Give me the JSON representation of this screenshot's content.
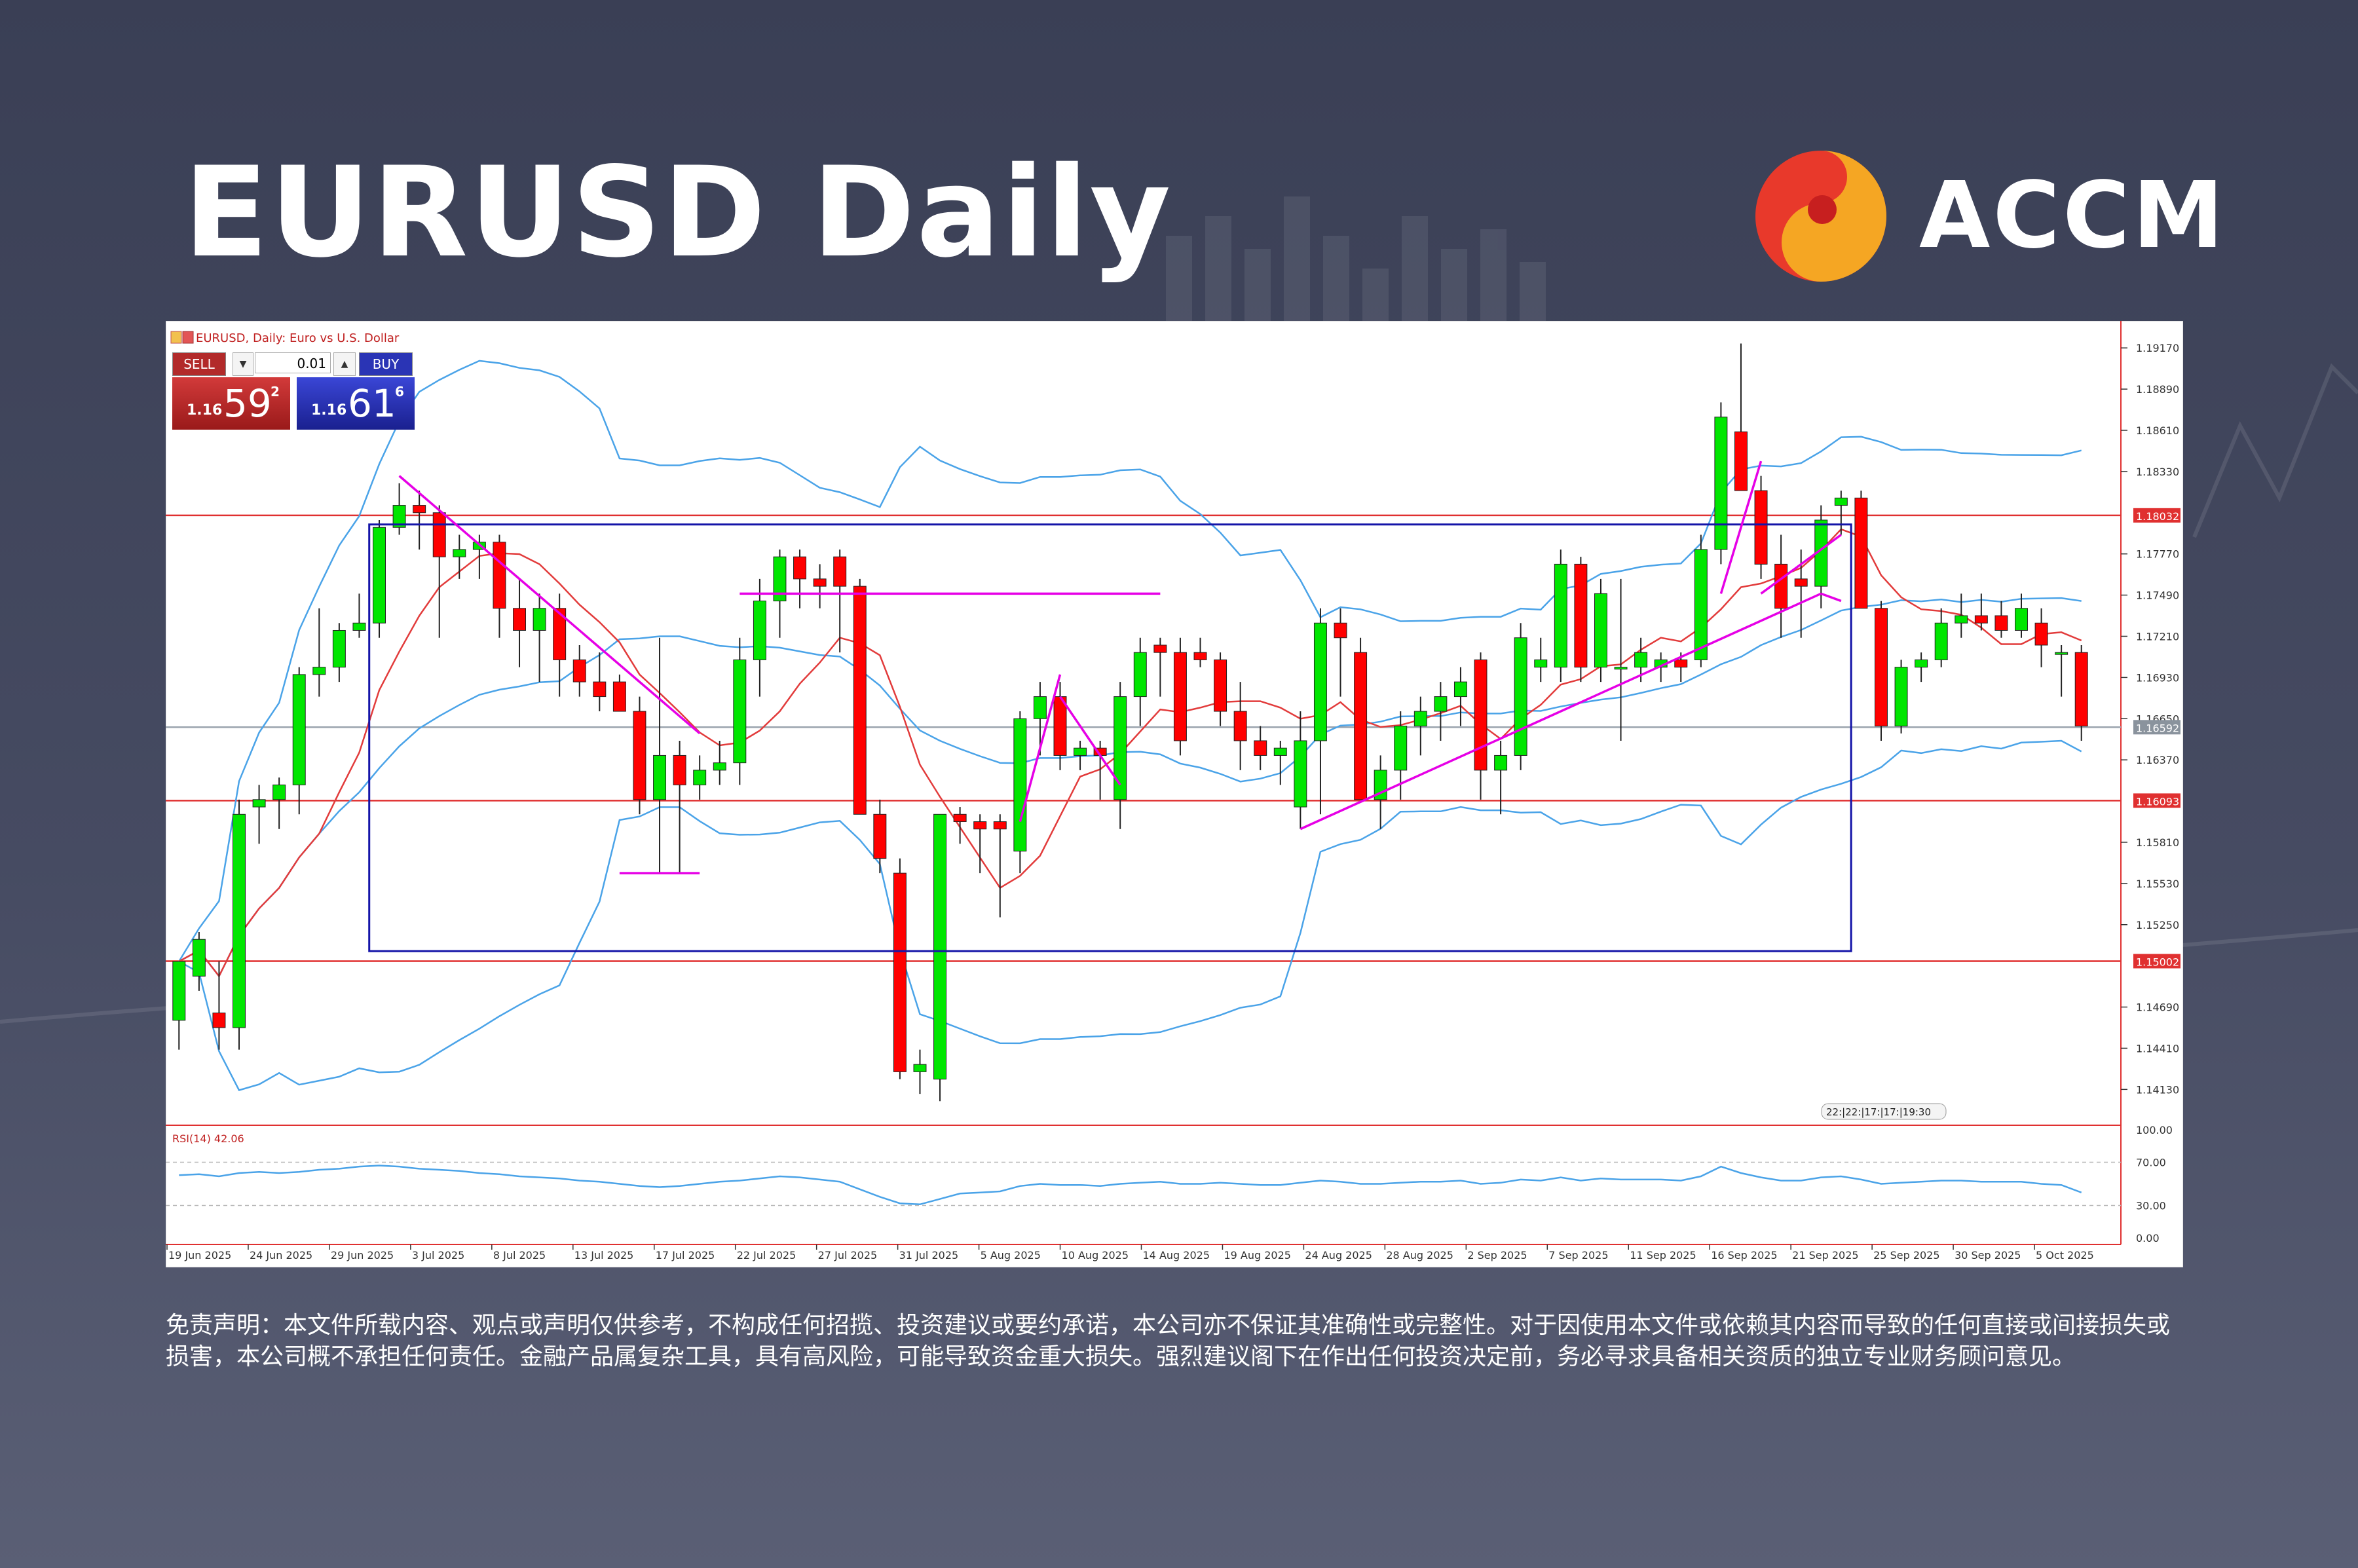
{
  "header": {
    "title": "EURUSD Daily",
    "brand_name": "ACCM"
  },
  "chart_header": {
    "label": "EURUSD, Daily:  Euro vs U.S. Dollar"
  },
  "trade_panel": {
    "sell_label": "SELL",
    "buy_label": "BUY",
    "lot_value": "0.01",
    "sell_price_prefix": "1.16",
    "sell_price_big": "59",
    "sell_price_sup": "2",
    "buy_price_prefix": "1.16",
    "buy_price_big": "61",
    "buy_price_sup": "6"
  },
  "indicator": {
    "label": "RSI(14) 42.06",
    "levels": [
      "100.00",
      "70.00",
      "30.00",
      "0.00"
    ]
  },
  "time_tooltip": "22:|22:|17:|17:|19:30",
  "colors": {
    "bull": "#00e600",
    "bear": "#ff0000",
    "bollinger": "#4aa3e8",
    "ma": "#e23b3b",
    "trendline": "#e600e6",
    "box": "#1414a8",
    "level_line": "#e03030",
    "current_line": "#9aa3ad"
  },
  "chart_data": {
    "type": "candlestick",
    "symbol": "EURUSD",
    "timeframe": "Daily",
    "ylim": [
      1.139,
      1.193
    ],
    "y_ticks": [
      "1.19170",
      "1.18890",
      "1.18610",
      "1.18330",
      "1.18032",
      "1.17770",
      "1.17490",
      "1.17210",
      "1.16930",
      "1.16650",
      "1.16592",
      "1.16370",
      "1.16093",
      "1.15810",
      "1.15530",
      "1.15250",
      "1.15002",
      "1.14690",
      "1.14410",
      "1.14130"
    ],
    "x_ticks": [
      "19 Jun 2025",
      "24 Jun 2025",
      "29 Jun 2025",
      "3 Jul 2025",
      "8 Jul 2025",
      "13 Jul 2025",
      "17 Jul 2025",
      "22 Jul 2025",
      "27 Jul 2025",
      "31 Jul 2025",
      "5 Aug 2025",
      "10 Aug 2025",
      "14 Aug 2025",
      "19 Aug 2025",
      "24 Aug 2025",
      "28 Aug 2025",
      "2 Sep 2025",
      "7 Sep 2025",
      "11 Sep 2025",
      "16 Sep 2025",
      "21 Sep 2025",
      "25 Sep 2025",
      "30 Sep 2025",
      "5 Oct 2025"
    ],
    "horizontal_levels": [
      {
        "price": 1.18032,
        "label": "1.18032"
      },
      {
        "price": 1.16093,
        "label": "1.16093"
      },
      {
        "price": 1.15002,
        "label": "1.15002"
      }
    ],
    "current_price": {
      "price": 1.16592,
      "label": "1.16592"
    },
    "range_box": {
      "x_start_bar": 10,
      "x_end_bar": 83,
      "high": 1.1797,
      "low": 1.1507
    },
    "candles": [
      [
        1.146,
        1.15,
        1.144,
        1.15
      ],
      [
        1.149,
        1.152,
        1.148,
        1.1515
      ],
      [
        1.1465,
        1.15,
        1.144,
        1.1455
      ],
      [
        1.1455,
        1.161,
        1.144,
        1.16
      ],
      [
        1.1605,
        1.162,
        1.158,
        1.161
      ],
      [
        1.161,
        1.1625,
        1.159,
        1.162
      ],
      [
        1.162,
        1.17,
        1.16,
        1.1695
      ],
      [
        1.1695,
        1.174,
        1.168,
        1.17
      ],
      [
        1.17,
        1.173,
        1.169,
        1.1725
      ],
      [
        1.1725,
        1.175,
        1.172,
        1.173
      ],
      [
        1.173,
        1.18,
        1.172,
        1.1795
      ],
      [
        1.1795,
        1.1825,
        1.179,
        1.181
      ],
      [
        1.181,
        1.182,
        1.178,
        1.1805
      ],
      [
        1.1805,
        1.181,
        1.172,
        1.1775
      ],
      [
        1.1775,
        1.179,
        1.176,
        1.178
      ],
      [
        1.178,
        1.179,
        1.176,
        1.1785
      ],
      [
        1.1785,
        1.179,
        1.172,
        1.174
      ],
      [
        1.174,
        1.176,
        1.17,
        1.1725
      ],
      [
        1.1725,
        1.175,
        1.169,
        1.174
      ],
      [
        1.174,
        1.175,
        1.168,
        1.1705
      ],
      [
        1.1705,
        1.1715,
        1.168,
        1.169
      ],
      [
        1.169,
        1.171,
        1.167,
        1.168
      ],
      [
        1.169,
        1.1695,
        1.167,
        1.167
      ],
      [
        1.167,
        1.168,
        1.16,
        1.161
      ],
      [
        1.161,
        1.172,
        1.156,
        1.164
      ],
      [
        1.164,
        1.165,
        1.156,
        1.162
      ],
      [
        1.162,
        1.164,
        1.161,
        1.163
      ],
      [
        1.163,
        1.165,
        1.162,
        1.1635
      ],
      [
        1.1635,
        1.172,
        1.162,
        1.1705
      ],
      [
        1.1705,
        1.176,
        1.168,
        1.1745
      ],
      [
        1.1745,
        1.178,
        1.172,
        1.1775
      ],
      [
        1.1775,
        1.178,
        1.174,
        1.176
      ],
      [
        1.176,
        1.177,
        1.174,
        1.1755
      ],
      [
        1.1775,
        1.178,
        1.171,
        1.1755
      ],
      [
        1.1755,
        1.176,
        1.16,
        1.16
      ],
      [
        1.16,
        1.161,
        1.156,
        1.157
      ],
      [
        1.156,
        1.157,
        1.142,
        1.1425
      ],
      [
        1.1425,
        1.144,
        1.141,
        1.143
      ],
      [
        1.142,
        1.16,
        1.1405,
        1.16
      ],
      [
        1.16,
        1.1605,
        1.158,
        1.1595
      ],
      [
        1.1595,
        1.16,
        1.156,
        1.159
      ],
      [
        1.1595,
        1.16,
        1.153,
        1.159
      ],
      [
        1.1575,
        1.167,
        1.156,
        1.1665
      ],
      [
        1.1665,
        1.169,
        1.164,
        1.168
      ],
      [
        1.168,
        1.169,
        1.163,
        1.164
      ],
      [
        1.164,
        1.165,
        1.163,
        1.1645
      ],
      [
        1.1645,
        1.165,
        1.161,
        1.164
      ],
      [
        1.161,
        1.169,
        1.159,
        1.168
      ],
      [
        1.168,
        1.172,
        1.166,
        1.171
      ],
      [
        1.1715,
        1.172,
        1.168,
        1.171
      ],
      [
        1.171,
        1.172,
        1.164,
        1.165
      ],
      [
        1.171,
        1.172,
        1.17,
        1.1705
      ],
      [
        1.1705,
        1.171,
        1.166,
        1.167
      ],
      [
        1.167,
        1.169,
        1.163,
        1.165
      ],
      [
        1.165,
        1.166,
        1.163,
        1.164
      ],
      [
        1.164,
        1.165,
        1.162,
        1.1645
      ],
      [
        1.1605,
        1.167,
        1.159,
        1.165
      ],
      [
        1.165,
        1.174,
        1.16,
        1.173
      ],
      [
        1.173,
        1.174,
        1.168,
        1.172
      ],
      [
        1.171,
        1.172,
        1.161,
        1.161
      ],
      [
        1.161,
        1.164,
        1.159,
        1.163
      ],
      [
        1.163,
        1.167,
        1.161,
        1.166
      ],
      [
        1.166,
        1.168,
        1.164,
        1.167
      ],
      [
        1.167,
        1.169,
        1.165,
        1.168
      ],
      [
        1.168,
        1.17,
        1.166,
        1.169
      ],
      [
        1.1705,
        1.171,
        1.161,
        1.163
      ],
      [
        1.163,
        1.165,
        1.16,
        1.164
      ],
      [
        1.164,
        1.173,
        1.163,
        1.172
      ],
      [
        1.17,
        1.172,
        1.169,
        1.1705
      ],
      [
        1.17,
        1.178,
        1.169,
        1.177
      ],
      [
        1.177,
        1.1775,
        1.169,
        1.17
      ],
      [
        1.17,
        1.176,
        1.169,
        1.175
      ],
      [
        1.17,
        1.176,
        1.165,
        1.17
      ],
      [
        1.17,
        1.172,
        1.169,
        1.171
      ],
      [
        1.17,
        1.171,
        1.169,
        1.1705
      ],
      [
        1.1705,
        1.171,
        1.169,
        1.17
      ],
      [
        1.1705,
        1.179,
        1.17,
        1.178
      ],
      [
        1.178,
        1.188,
        1.177,
        1.187
      ],
      [
        1.186,
        1.192,
        1.182,
        1.182
      ],
      [
        1.182,
        1.183,
        1.176,
        1.177
      ],
      [
        1.177,
        1.179,
        1.172,
        1.174
      ],
      [
        1.176,
        1.178,
        1.172,
        1.1755
      ],
      [
        1.1755,
        1.181,
        1.174,
        1.18
      ],
      [
        1.181,
        1.182,
        1.179,
        1.1815
      ],
      [
        1.1815,
        1.182,
        1.174,
        1.174
      ],
      [
        1.174,
        1.1745,
        1.165,
        1.166
      ],
      [
        1.166,
        1.1705,
        1.1655,
        1.17
      ],
      [
        1.17,
        1.171,
        1.169,
        1.1705
      ],
      [
        1.1705,
        1.174,
        1.17,
        1.173
      ],
      [
        1.173,
        1.175,
        1.172,
        1.1735
      ],
      [
        1.1735,
        1.175,
        1.1725,
        1.173
      ],
      [
        1.1735,
        1.1745,
        1.172,
        1.1725
      ],
      [
        1.1725,
        1.175,
        1.172,
        1.174
      ],
      [
        1.173,
        1.174,
        1.17,
        1.1715
      ],
      [
        1.171,
        1.1715,
        1.168,
        1.171
      ],
      [
        1.171,
        1.1715,
        1.165,
        1.166
      ]
    ],
    "rsi": [
      58,
      59,
      57,
      60,
      61,
      60,
      61,
      63,
      64,
      66,
      67,
      66,
      64,
      63,
      62,
      60,
      59,
      57,
      56,
      55,
      53,
      52,
      50,
      48,
      47,
      48,
      50,
      52,
      53,
      55,
      57,
      56,
      54,
      52,
      45,
      38,
      32,
      31,
      36,
      41,
      42,
      43,
      48,
      50,
      49,
      49,
      48,
      50,
      51,
      52,
      50,
      50,
      51,
      50,
      49,
      49,
      51,
      53,
      52,
      50,
      50,
      51,
      52,
      52,
      53,
      50,
      51,
      54,
      53,
      56,
      53,
      55,
      54,
      54,
      54,
      53,
      57,
      66,
      60,
      56,
      53,
      53,
      56,
      57,
      54,
      50,
      51,
      52,
      53,
      53,
      52,
      52,
      52,
      50,
      49,
      42
    ],
    "rsi_levels": [
      70,
      30
    ]
  },
  "disclaimer": "免责声明：本文件所载内容、观点或声明仅供参考，不构成任何招揽、投资建议或要约承诺，本公司亦不保证其准确性或完整性。对于因使用本文件或依赖其内容而导致的任何直接或间接损失或损害，本公司概不承担任何责任。金融产品属复杂工具，具有高风险，可能导致资金重大损失。强烈建议阁下在作出任何投资决定前，务必寻求具备相关资质的独立专业财务顾问意见。"
}
